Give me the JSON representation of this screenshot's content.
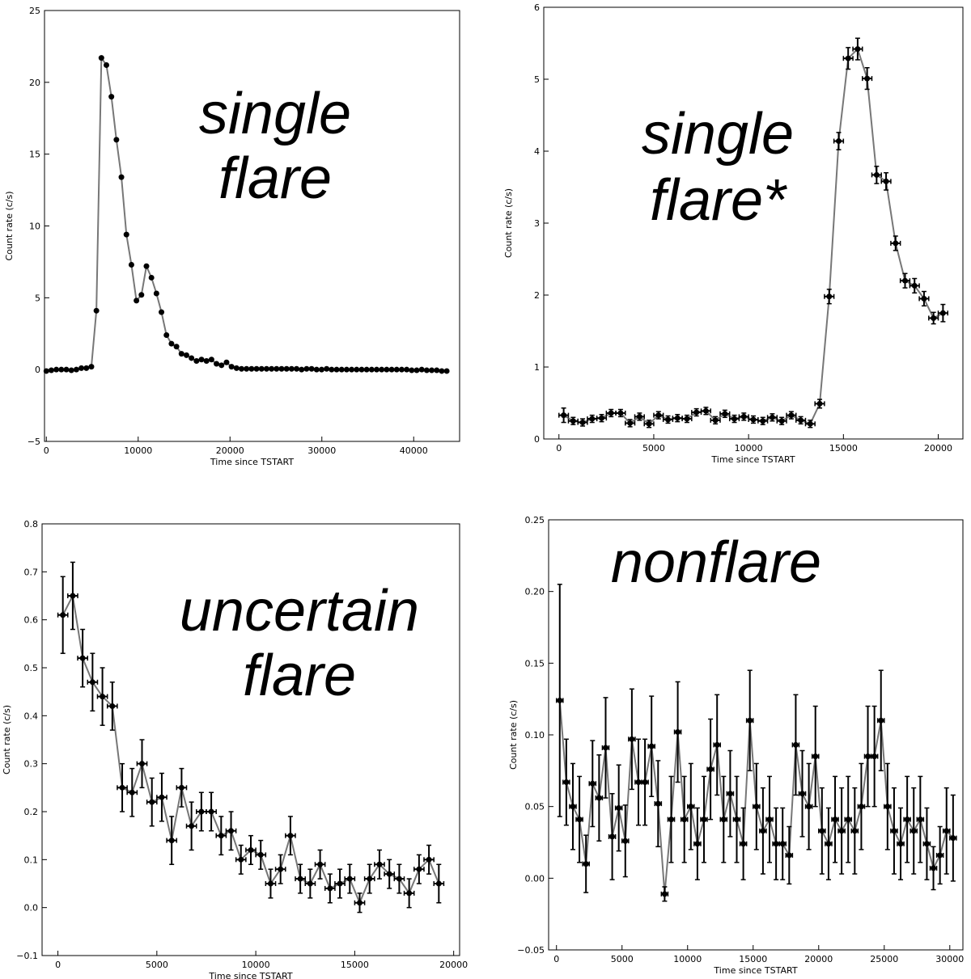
{
  "chart_data": [
    {
      "type": "line",
      "annotation": [
        "single",
        "flare"
      ],
      "xlabel": "Time since TSTART",
      "ylabel": "Count rate (c/s)",
      "xlim": [
        -200,
        45000
      ],
      "ylim": [
        -5,
        25
      ],
      "xticks": [
        0,
        10000,
        20000,
        30000,
        40000
      ],
      "yticks": [
        {
          "value": -5,
          "label": "−5"
        },
        0,
        5,
        10,
        15,
        20,
        25
      ],
      "line_color": "#777777",
      "marker_color": "#000000",
      "x": [
        0,
        545,
        1090,
        1635,
        2180,
        2725,
        3270,
        3815,
        4360,
        4905,
        5450,
        5995,
        6540,
        7085,
        7630,
        8175,
        8720,
        9265,
        9810,
        10355,
        10900,
        11445,
        11990,
        12535,
        13080,
        13625,
        14170,
        14715,
        15260,
        15805,
        16350,
        16895,
        17440,
        17985,
        18530,
        19075,
        19620,
        20165,
        20710,
        21255,
        21800,
        22345,
        22890,
        23435,
        23980,
        24525,
        25070,
        25615,
        26160,
        26705,
        27250,
        27795,
        28340,
        28885,
        29430,
        29975,
        30520,
        31065,
        31610,
        32155,
        32700,
        33245,
        33790,
        34335,
        34880,
        35425,
        35970,
        36515,
        37060,
        37605,
        38150,
        38695,
        39240,
        39785,
        40330,
        40875,
        41420,
        41965,
        42510,
        43055,
        43600
      ],
      "values": [
        -0.1,
        -0.05,
        0,
        0,
        0,
        -0.05,
        0,
        0.1,
        0.1,
        0.2,
        4.1,
        21.7,
        21.2,
        19.0,
        16.0,
        13.4,
        9.4,
        7.3,
        4.8,
        5.2,
        7.2,
        6.4,
        5.3,
        4.0,
        2.4,
        1.8,
        1.6,
        1.1,
        1.0,
        0.8,
        0.6,
        0.7,
        0.6,
        0.7,
        0.4,
        0.3,
        0.5,
        0.2,
        0.1,
        0.05,
        0.05,
        0.05,
        0.05,
        0.05,
        0.05,
        0.05,
        0.05,
        0.05,
        0.05,
        0.05,
        0.05,
        0,
        0.05,
        0.05,
        0,
        0,
        0.05,
        0,
        0,
        0,
        0,
        0,
        0,
        0,
        0,
        0,
        0,
        0,
        0,
        0,
        0,
        0,
        0,
        -0.05,
        -0.05,
        0,
        -0.05,
        -0.05,
        -0.05,
        -0.1,
        -0.1
      ]
    },
    {
      "type": "line",
      "annotation": [
        "single",
        "flare*"
      ],
      "xlabel": "Time since TSTART",
      "ylabel": "Count rate (c/s)",
      "xlim": [
        -800,
        21300
      ],
      "ylim": [
        0,
        6
      ],
      "xticks": [
        0,
        5000,
        10000,
        15000,
        20000
      ],
      "yticks": [
        0,
        1,
        2,
        3,
        4,
        5,
        6
      ],
      "line_color": "#777777",
      "marker_color": "#000000",
      "xerr": 250,
      "x": [
        250,
        750,
        1250,
        1750,
        2250,
        2750,
        3250,
        3750,
        4250,
        4750,
        5250,
        5750,
        6250,
        6750,
        7250,
        7750,
        8250,
        8750,
        9250,
        9750,
        10250,
        10750,
        11250,
        11750,
        12250,
        12750,
        13250,
        13750,
        14250,
        14750,
        15250,
        15750,
        16250,
        16750,
        17250,
        17750,
        18250,
        18750,
        19250,
        19750,
        20250
      ],
      "values": [
        0.33,
        0.25,
        0.23,
        0.28,
        0.29,
        0.36,
        0.36,
        0.22,
        0.31,
        0.21,
        0.33,
        0.27,
        0.29,
        0.28,
        0.37,
        0.39,
        0.26,
        0.35,
        0.28,
        0.31,
        0.27,
        0.25,
        0.3,
        0.25,
        0.33,
        0.26,
        0.21,
        0.49,
        1.98,
        4.14,
        5.29,
        5.42,
        5.01,
        3.67,
        3.58,
        2.72,
        2.2,
        2.13,
        1.95,
        1.68,
        1.75
      ],
      "yerr": [
        0.1,
        0.05,
        0.05,
        0.05,
        0.05,
        0.05,
        0.05,
        0.05,
        0.05,
        0.05,
        0.05,
        0.05,
        0.05,
        0.05,
        0.05,
        0.05,
        0.05,
        0.05,
        0.05,
        0.05,
        0.05,
        0.05,
        0.05,
        0.05,
        0.05,
        0.05,
        0.05,
        0.06,
        0.1,
        0.12,
        0.15,
        0.15,
        0.15,
        0.12,
        0.12,
        0.1,
        0.1,
        0.1,
        0.1,
        0.08,
        0.12
      ]
    },
    {
      "type": "line",
      "annotation": [
        "uncertain",
        "flare"
      ],
      "xlabel": "Time since TSTART",
      "ylabel": "Count rate (c/s)",
      "xlim": [
        -800,
        20300
      ],
      "ylim": [
        -0.1,
        0.8
      ],
      "xticks": [
        0,
        5000,
        10000,
        15000,
        20000
      ],
      "yticks": [
        {
          "value": -0.1,
          "label": "−0.1"
        },
        {
          "value": 0,
          "label": "0.0"
        },
        0.1,
        0.2,
        0.3,
        0.4,
        0.5,
        0.6,
        0.7,
        0.8
      ],
      "line_color": "#777777",
      "marker_color": "#000000",
      "xerr": 250,
      "x": [
        250,
        750,
        1250,
        1750,
        2250,
        2750,
        3250,
        3750,
        4250,
        4750,
        5250,
        5750,
        6250,
        6750,
        7250,
        7750,
        8250,
        8750,
        9250,
        9750,
        10250,
        10750,
        11250,
        11750,
        12250,
        12750,
        13250,
        13750,
        14250,
        14750,
        15250,
        15750,
        16250,
        16750,
        17250,
        17750,
        18250,
        18750,
        19250
      ],
      "values": [
        0.61,
        0.65,
        0.52,
        0.47,
        0.44,
        0.42,
        0.25,
        0.24,
        0.3,
        0.22,
        0.23,
        0.14,
        0.25,
        0.17,
        0.2,
        0.2,
        0.15,
        0.16,
        0.1,
        0.12,
        0.11,
        0.05,
        0.08,
        0.15,
        0.06,
        0.05,
        0.09,
        0.04,
        0.05,
        0.06,
        0.01,
        0.06,
        0.09,
        0.07,
        0.06,
        0.03,
        0.08,
        0.1,
        0.05
      ],
      "yerr": [
        0.08,
        0.07,
        0.06,
        0.06,
        0.06,
        0.05,
        0.05,
        0.05,
        0.05,
        0.05,
        0.05,
        0.05,
        0.04,
        0.05,
        0.04,
        0.04,
        0.04,
        0.04,
        0.03,
        0.03,
        0.03,
        0.03,
        0.03,
        0.04,
        0.03,
        0.03,
        0.03,
        0.03,
        0.03,
        0.03,
        0.02,
        0.03,
        0.03,
        0.03,
        0.03,
        0.03,
        0.03,
        0.03,
        0.04
      ]
    },
    {
      "type": "line",
      "annotation": [
        "nonflare"
      ],
      "xlabel": "Time since TSTART",
      "ylabel": "Count rate (c/s)",
      "xlim": [
        -600,
        31000
      ],
      "ylim": [
        -0.05,
        0.25
      ],
      "xticks": [
        0,
        5000,
        10000,
        15000,
        20000,
        25000,
        30000
      ],
      "yticks": [
        {
          "value": -0.05,
          "label": "−0.05"
        },
        {
          "value": 0,
          "label": "0.00"
        },
        0.05,
        {
          "value": 0.1,
          "label": "0.10"
        },
        0.15,
        {
          "value": 0.2,
          "label": "0.20"
        },
        0.25
      ],
      "line_color": "#777777",
      "marker_color": "#000000",
      "xerr": 250,
      "x": [
        250,
        750,
        1250,
        1750,
        2250,
        2750,
        3250,
        3750,
        4250,
        4750,
        5250,
        5750,
        6250,
        6750,
        7250,
        7750,
        8250,
        8750,
        9250,
        9750,
        10250,
        10750,
        11250,
        11750,
        12250,
        12750,
        13250,
        13750,
        14250,
        14750,
        15250,
        15750,
        16250,
        16750,
        17250,
        17750,
        18250,
        18750,
        19250,
        19750,
        20250,
        20750,
        21250,
        21750,
        22250,
        22750,
        23250,
        23750,
        24250,
        24750,
        25250,
        25750,
        26250,
        26750,
        27250,
        27750,
        28250,
        28750,
        29250,
        29750,
        30250
      ],
      "values": [
        0.124,
        0.067,
        0.05,
        0.041,
        0.01,
        0.066,
        0.056,
        0.091,
        0.029,
        0.049,
        0.026,
        0.097,
        0.067,
        0.067,
        0.092,
        0.052,
        -0.011,
        0.041,
        0.102,
        0.041,
        0.05,
        0.024,
        0.041,
        0.076,
        0.093,
        0.041,
        0.059,
        0.041,
        0.024,
        0.11,
        0.05,
        0.033,
        0.041,
        0.024,
        0.024,
        0.016,
        0.093,
        0.059,
        0.05,
        0.085,
        0.033,
        0.024,
        0.041,
        0.033,
        0.041,
        0.033,
        0.05,
        0.085,
        0.085,
        0.11,
        0.05,
        0.033,
        0.024,
        0.041,
        0.033,
        0.041,
        0.024,
        0.007,
        0.016,
        0.033,
        0.028
      ],
      "yerr": [
        0.081,
        0.03,
        0.03,
        0.03,
        0.02,
        0.03,
        0.03,
        0.035,
        0.03,
        0.03,
        0.025,
        0.035,
        0.03,
        0.03,
        0.035,
        0.03,
        0.005,
        0.03,
        0.035,
        0.03,
        0.03,
        0.025,
        0.03,
        0.035,
        0.035,
        0.03,
        0.03,
        0.03,
        0.025,
        0.035,
        0.03,
        0.03,
        0.03,
        0.025,
        0.025,
        0.02,
        0.035,
        0.03,
        0.03,
        0.035,
        0.03,
        0.025,
        0.03,
        0.03,
        0.03,
        0.03,
        0.03,
        0.035,
        0.035,
        0.035,
        0.03,
        0.03,
        0.025,
        0.03,
        0.03,
        0.03,
        0.025,
        0.015,
        0.02,
        0.03,
        0.03
      ]
    }
  ]
}
